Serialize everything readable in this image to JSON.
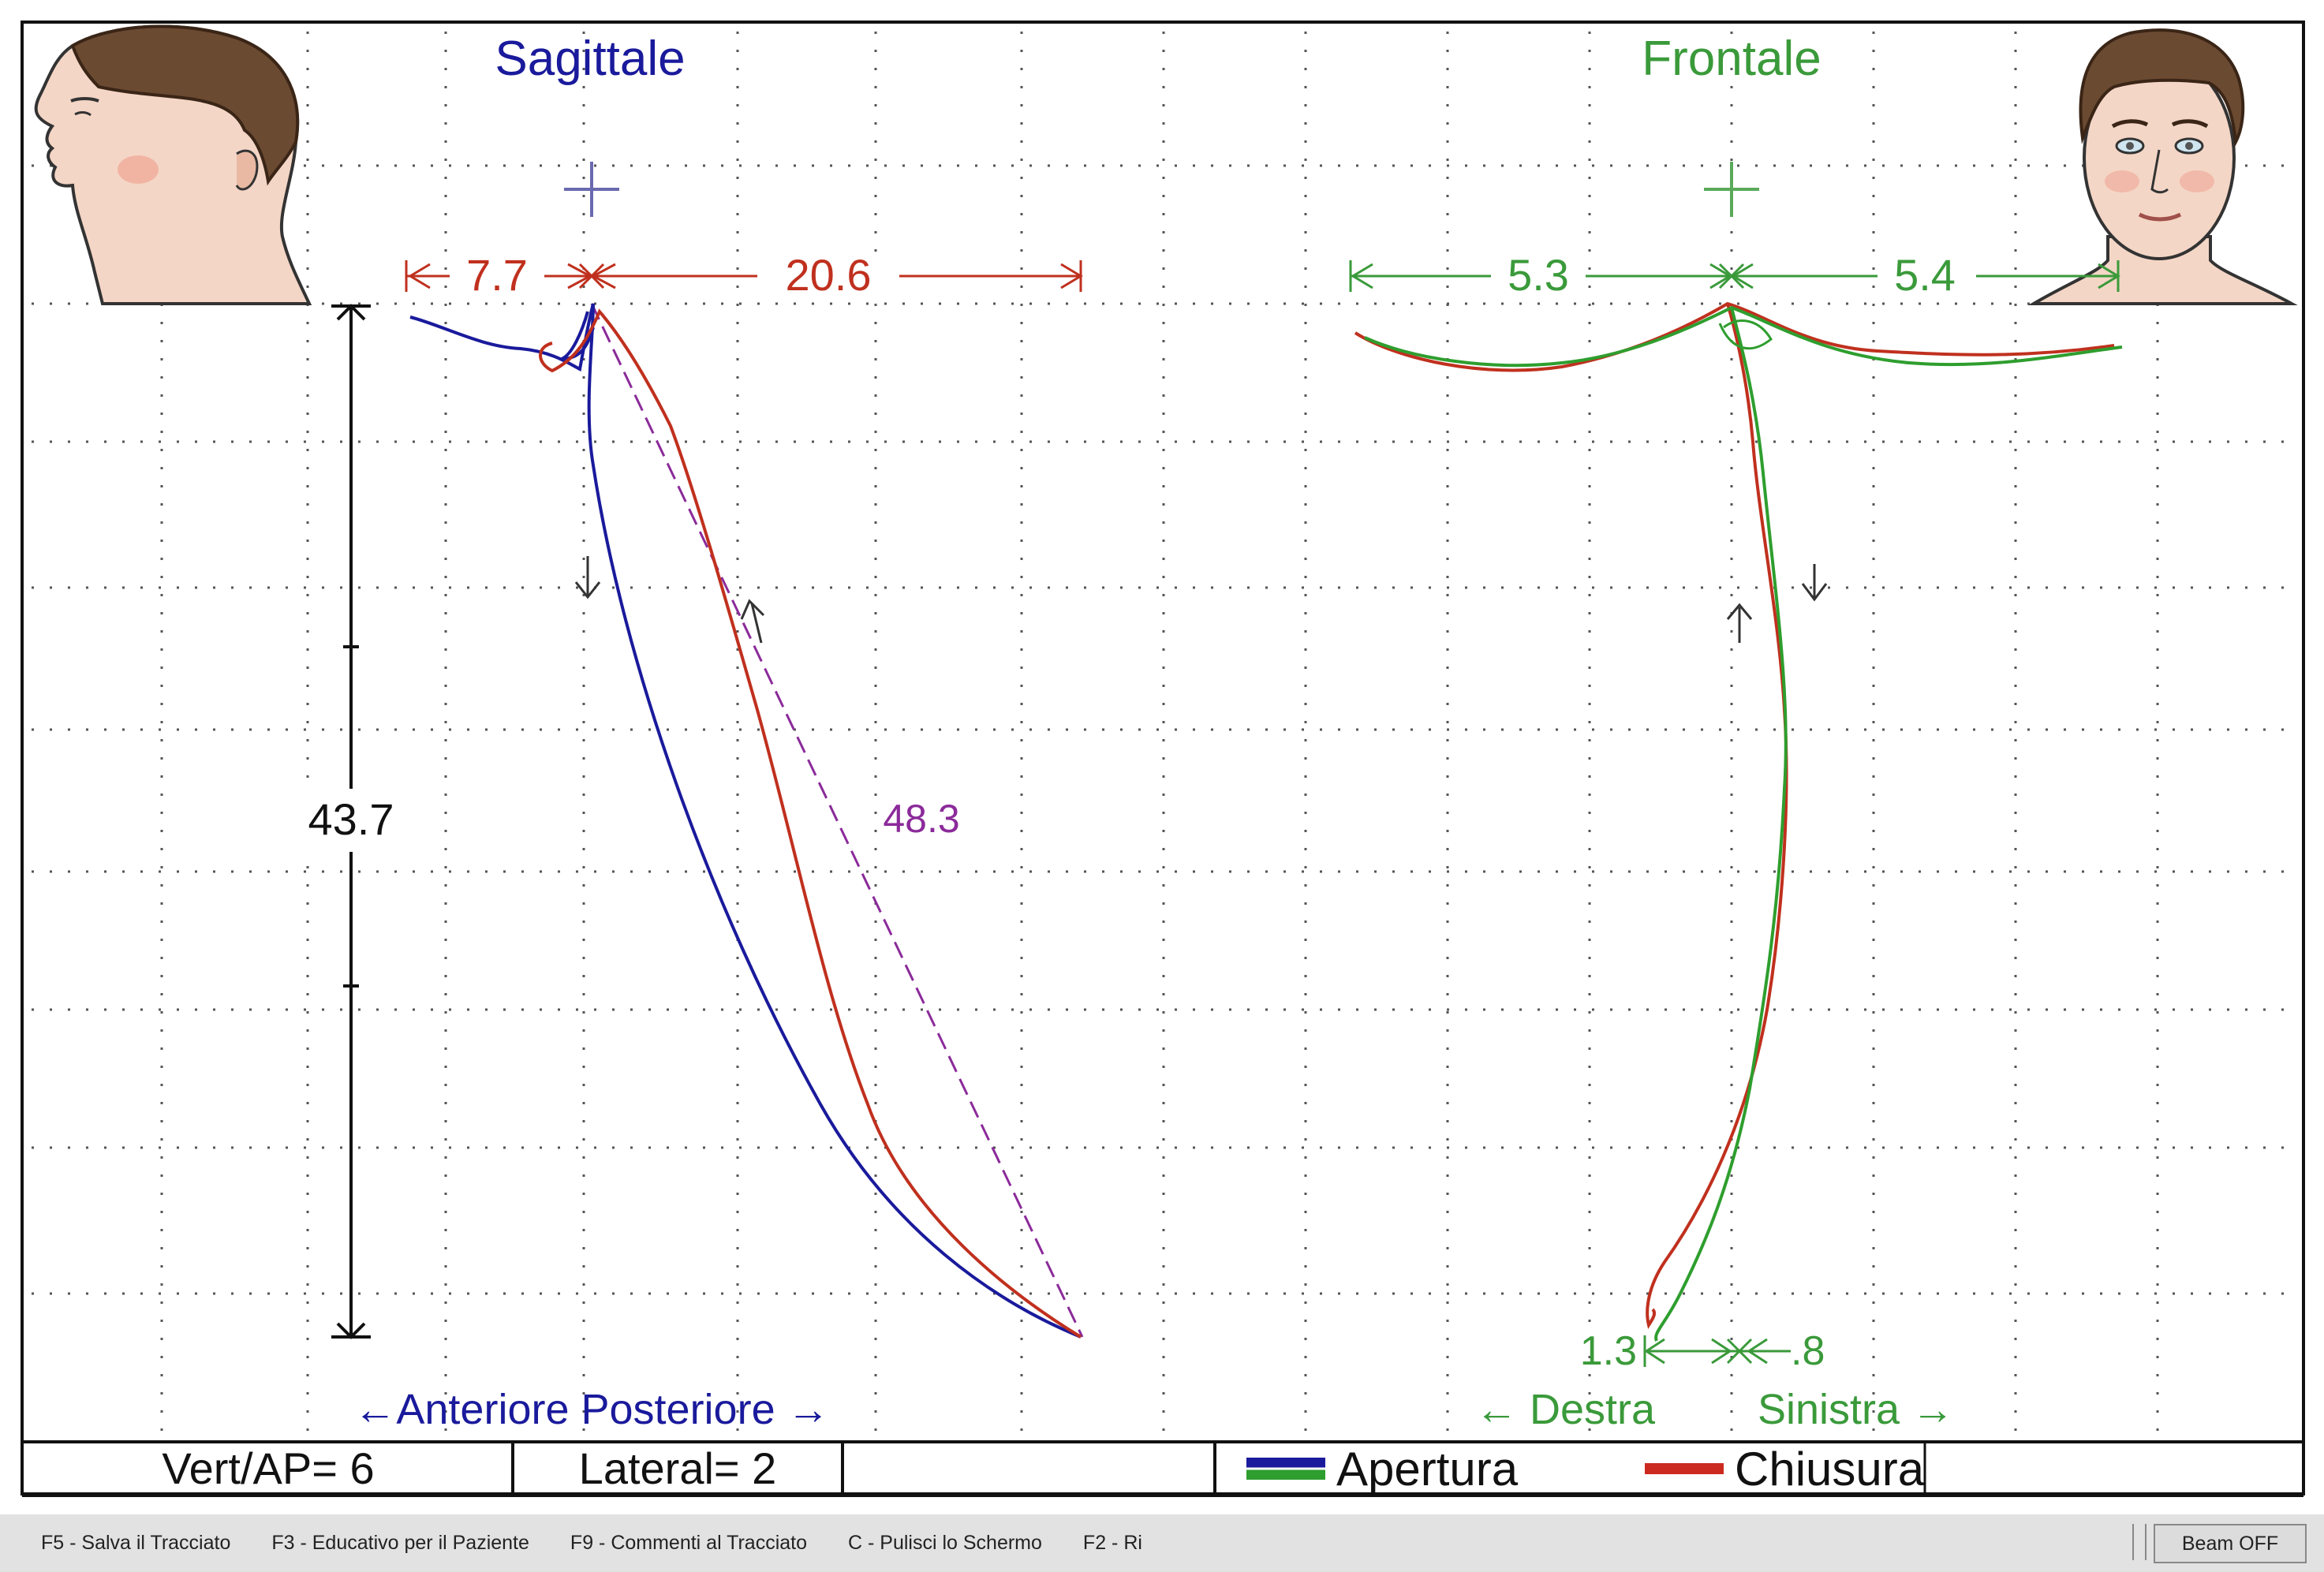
{
  "views": {
    "sagittal": {
      "title": "Sagittale",
      "face_icon": "face-profile-icon"
    },
    "frontal": {
      "title": "Frontale",
      "face_icon": "face-front-icon"
    }
  },
  "measurements": {
    "sag_anterior": "7.7",
    "sag_posterior": "20.6",
    "sag_vertical": "43.7",
    "sag_diagonal": "48.3",
    "front_right": "5.3",
    "front_left": "5.4",
    "front_bottom_right": "1.3",
    "front_bottom_left": ".8"
  },
  "axis_labels": {
    "sagittal": "←Anteriore Posteriore →",
    "frontal_right": "← Destra",
    "frontal_left": "Sinistra →"
  },
  "status_bar": {
    "vert_ap": "Vert/AP= 6",
    "lateral": "Lateral= 2",
    "empty": ""
  },
  "legend": {
    "opening": "Apertura",
    "closing": "Chiusura"
  },
  "colors": {
    "opening_sagittal": "#1a1a9c",
    "opening_frontal": "#2e9e2e",
    "closing": "#cc2a1e",
    "sagittal_title": "#1a1a9c",
    "frontal_title": "#3a9a3a",
    "diagonal_label": "#8b2a9a"
  },
  "function_keys": [
    "F5 - Salva il Tracciato",
    "F3 - Educativo per il Paziente",
    "F9 - Commenti al Tracciato",
    "C - Pulisci lo Schermo",
    "F2 - Ri"
  ],
  "beam_button": "Beam OFF"
}
